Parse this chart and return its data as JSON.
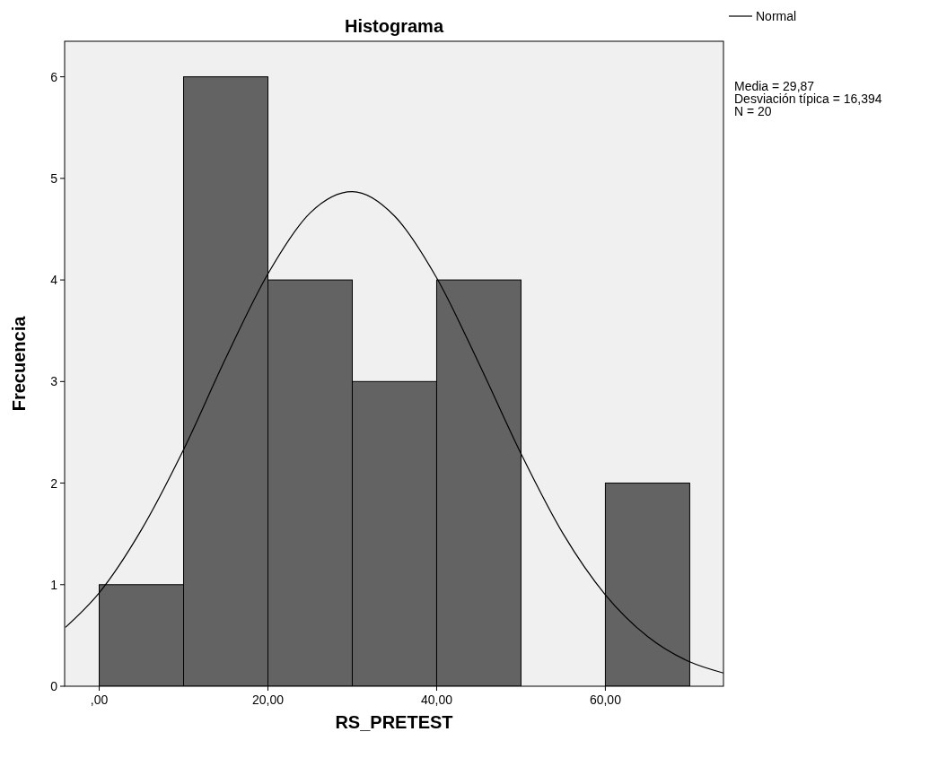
{
  "chart_data": {
    "type": "histogram",
    "title": "Histograma",
    "xlabel": "RS_PRETEST",
    "ylabel": "Frecuencia",
    "bins": [
      0,
      10,
      20,
      30,
      40,
      50,
      60,
      70
    ],
    "series": [
      {
        "color": "#636363",
        "values": [
          1,
          6,
          4,
          3,
          4,
          0,
          2
        ]
      },
      {
        "type": "line",
        "name": "Normal",
        "color": "#000000",
        "x": [
          -4,
          0,
          5,
          10,
          15,
          20,
          25,
          30,
          35,
          40,
          45,
          50,
          55,
          60,
          65,
          70,
          74
        ],
        "values": [
          0.58,
          0.92,
          1.54,
          2.33,
          3.23,
          4.06,
          4.66,
          4.87,
          4.63,
          4.02,
          3.18,
          2.29,
          1.5,
          0.9,
          0.49,
          0.24,
          0.13
        ]
      }
    ],
    "xlim": [
      -4.1,
      74
    ],
    "xticks": [
      {
        "value": 0,
        "label": ",00"
      },
      {
        "value": 20,
        "label": "20,00"
      },
      {
        "value": 40,
        "label": "40,00"
      },
      {
        "value": 60,
        "label": "60,00"
      }
    ],
    "ylim": [
      0,
      6.35
    ],
    "yticks": [
      0,
      1,
      2,
      3,
      4,
      5,
      6
    ],
    "grid": false,
    "legend": "top right",
    "marker": "none",
    "line_style": "solid",
    "annotations": [
      "Media = 29,87",
      "Desviación típica = 16,394",
      "N = 20"
    ]
  }
}
